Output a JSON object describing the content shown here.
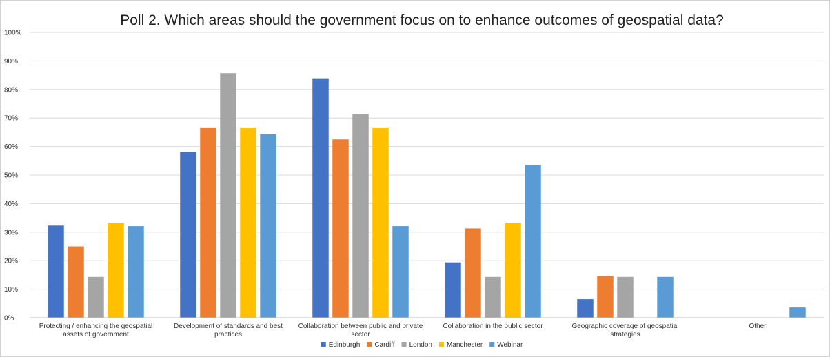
{
  "chart_data": {
    "type": "bar",
    "title": "Poll 2. Which areas should the government focus on to enhance outcomes of geospatial data?",
    "xlabel": "",
    "ylabel": "",
    "ylim": [
      0,
      100
    ],
    "ytick_step": 10,
    "ytick_format": "percent",
    "grid": true,
    "legend_position": "bottom",
    "categories": [
      [
        "Protecting / enhancing the geospatial",
        "assets of government"
      ],
      [
        "Development of standards and best",
        "practices"
      ],
      [
        "Collaboration between public and private",
        "sector"
      ],
      [
        "Collaboration in the public sector"
      ],
      [
        "Geographic coverage of geospatial",
        "strategies"
      ],
      [
        "Other"
      ]
    ],
    "series": [
      {
        "name": "Edinburgh",
        "color": "#4472C4",
        "values": [
          32.3,
          58.1,
          83.9,
          19.4,
          6.5,
          0
        ]
      },
      {
        "name": "Cardiff",
        "color": "#ED7D31",
        "values": [
          25.0,
          66.7,
          62.5,
          31.3,
          14.6,
          0
        ]
      },
      {
        "name": "London",
        "color": "#A5A5A5",
        "values": [
          14.3,
          85.7,
          71.4,
          14.3,
          14.3,
          0
        ]
      },
      {
        "name": "Manchester",
        "color": "#FFC000",
        "values": [
          33.3,
          66.7,
          66.7,
          33.3,
          0,
          0
        ]
      },
      {
        "name": "Webinar",
        "color": "#5B9BD5",
        "values": [
          32.1,
          64.3,
          32.1,
          53.6,
          14.3,
          3.6
        ]
      }
    ]
  }
}
